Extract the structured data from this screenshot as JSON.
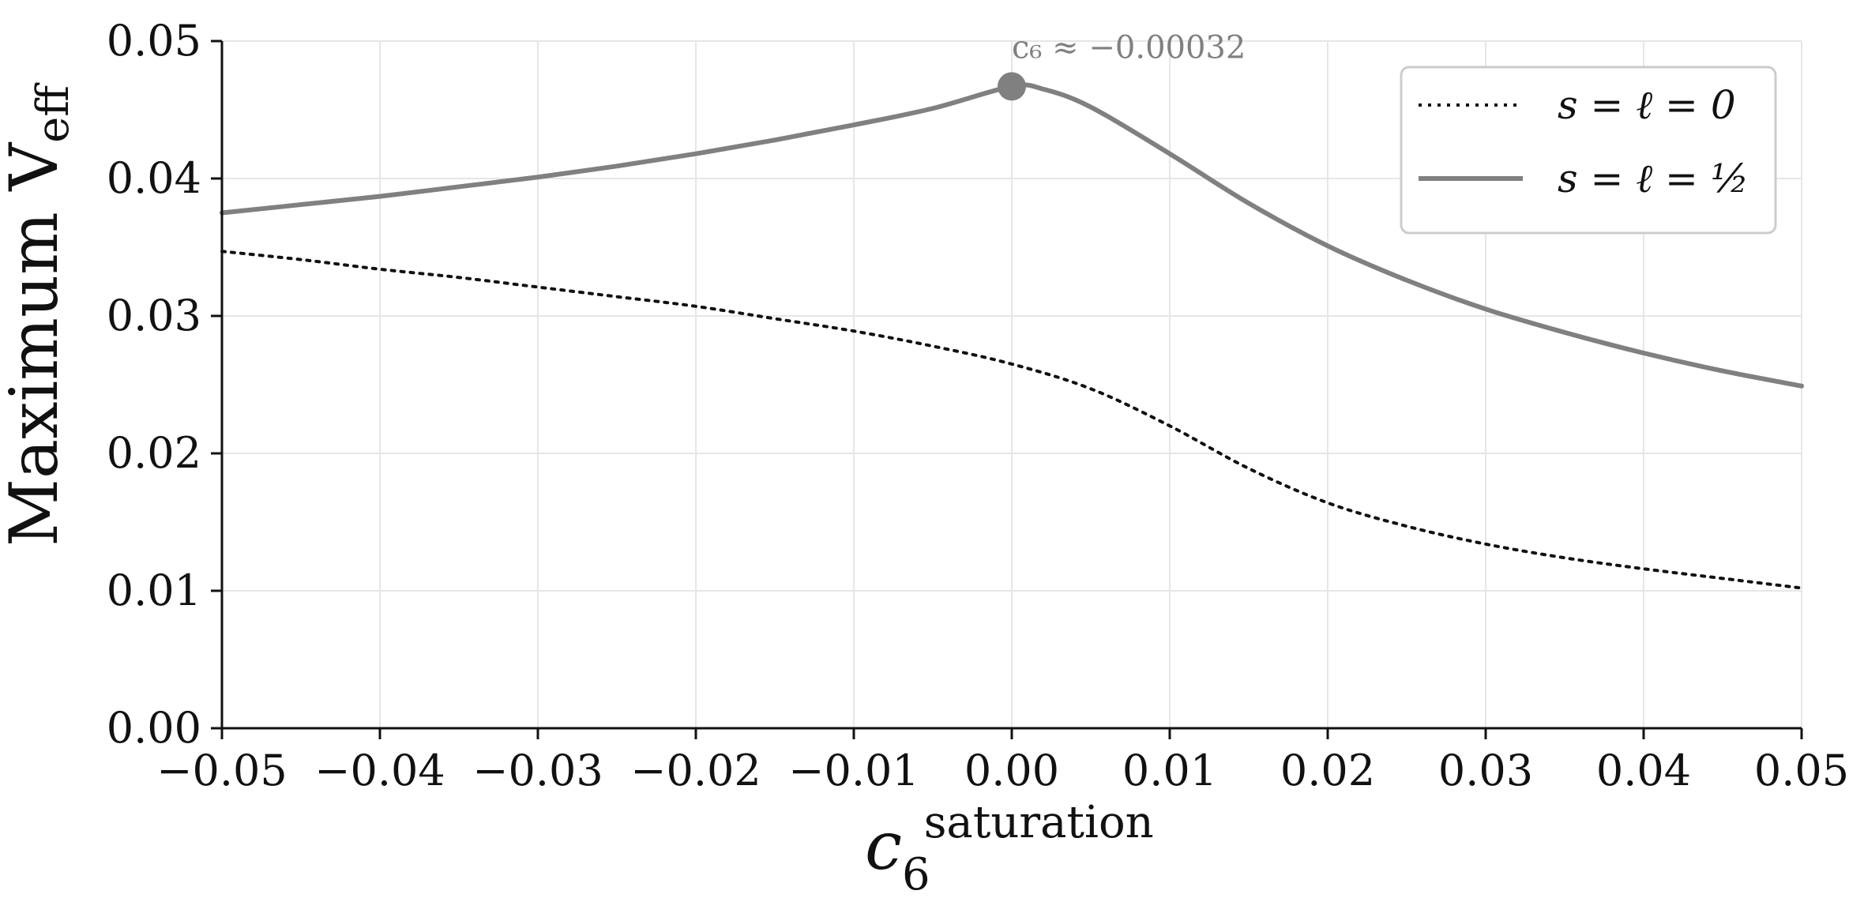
{
  "chart_data": {
    "type": "line",
    "title": "",
    "xlabel": "c_6^saturation",
    "xlabel_main": "c",
    "xlabel_sub": "6",
    "xlabel_sup": "saturation",
    "ylabel": "Maximum V_eff",
    "ylabel_main": "Maximum V",
    "ylabel_sub": "eff",
    "xlim": [
      -0.05,
      0.05
    ],
    "ylim": [
      0.0,
      0.05
    ],
    "xticks": [
      -0.05,
      -0.04,
      -0.03,
      -0.02,
      -0.01,
      0.0,
      0.01,
      0.02,
      0.03,
      0.04,
      0.05
    ],
    "xtick_labels": [
      "−0.05",
      "−0.04",
      "−0.03",
      "−0.02",
      "−0.01",
      "0.00",
      "0.01",
      "0.02",
      "0.03",
      "0.04",
      "0.05"
    ],
    "yticks": [
      0.0,
      0.01,
      0.02,
      0.03,
      0.04,
      0.05
    ],
    "ytick_labels": [
      "0.00",
      "0.01",
      "0.02",
      "0.03",
      "0.04",
      "0.05"
    ],
    "grid": true,
    "legend_position": "top-right",
    "series": [
      {
        "name": "s = ℓ = 0",
        "style": "dotted",
        "color": "#111111",
        "x": [
          -0.05,
          -0.045,
          -0.04,
          -0.035,
          -0.03,
          -0.025,
          -0.02,
          -0.015,
          -0.01,
          -0.005,
          0.0,
          0.005,
          0.01,
          0.015,
          0.02,
          0.025,
          0.03,
          0.035,
          0.04,
          0.045,
          0.05
        ],
        "y": [
          0.0347,
          0.0341,
          0.0334,
          0.0328,
          0.0321,
          0.0314,
          0.0307,
          0.0298,
          0.0289,
          0.0278,
          0.0265,
          0.0247,
          0.022,
          0.0189,
          0.0164,
          0.0147,
          0.0134,
          0.0124,
          0.0116,
          0.0109,
          0.0102
        ]
      },
      {
        "name": "s = ℓ = 1/2",
        "style": "solid",
        "color": "#808080",
        "x": [
          -0.05,
          -0.045,
          -0.04,
          -0.035,
          -0.03,
          -0.025,
          -0.02,
          -0.015,
          -0.01,
          -0.005,
          0.0,
          0.002,
          0.005,
          0.01,
          0.015,
          0.02,
          0.025,
          0.03,
          0.035,
          0.04,
          0.045,
          0.05
        ],
        "y": [
          0.0375,
          0.0381,
          0.0387,
          0.0394,
          0.0401,
          0.0409,
          0.0418,
          0.0428,
          0.0439,
          0.0451,
          0.0467,
          0.0465,
          0.0452,
          0.0418,
          0.0382,
          0.0351,
          0.0326,
          0.0305,
          0.0288,
          0.0273,
          0.026,
          0.0249
        ]
      }
    ],
    "annotations": [
      {
        "type": "point",
        "x": 0.0,
        "y": 0.0467,
        "color": "#808080"
      },
      {
        "type": "text",
        "text": "c₆ ≈ −0.00032",
        "x": 0.0,
        "y": 0.0467
      }
    ]
  },
  "legend": {
    "items": [
      {
        "label": "s = ℓ = 0"
      },
      {
        "label": "s = ℓ = ½"
      }
    ]
  }
}
